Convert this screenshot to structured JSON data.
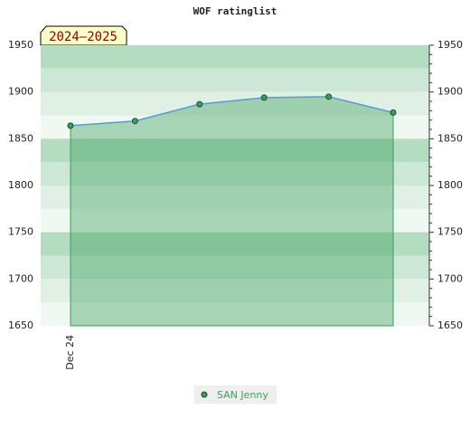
{
  "chart_data": {
    "type": "area",
    "title": "WOF ratinglist",
    "badge": "2024–2025",
    "categories": [
      "Dec 24",
      null,
      null,
      null,
      null,
      null
    ],
    "series": [
      {
        "name": "SAN Jenny",
        "color": "#3c9e5c",
        "values": [
          1864,
          1869,
          1887,
          1894,
          1895,
          1878
        ]
      }
    ],
    "ylim": [
      1650,
      1950
    ],
    "yticks": [
      1650,
      1700,
      1750,
      1800,
      1850,
      1900,
      1950
    ],
    "grid": true
  }
}
